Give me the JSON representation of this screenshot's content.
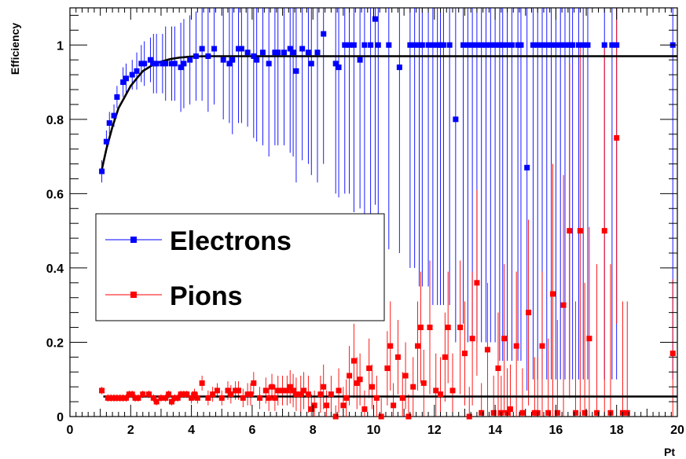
{
  "chart_data": {
    "type": "scatter",
    "xlabel": "Pt",
    "ylabel": "Efficiency",
    "xlim": [
      0,
      20
    ],
    "ylim": [
      0,
      1.1
    ],
    "x_ticks": [
      "0",
      "2",
      "4",
      "6",
      "8",
      "10",
      "12",
      "14",
      "16",
      "18",
      "20"
    ],
    "y_ticks": [
      "0",
      "0.2",
      "0.4",
      "0.6",
      "0.8",
      "1"
    ],
    "grid": false,
    "legend": "center-left",
    "series": [
      {
        "name": "Electrons",
        "color": "#0000ff",
        "marker": "square",
        "points": [
          [
            1.05,
            0.66,
            0.03
          ],
          [
            1.2,
            0.74,
            0.03
          ],
          [
            1.3,
            0.79,
            0.03
          ],
          [
            1.45,
            0.81,
            0.03
          ],
          [
            1.55,
            0.86,
            0.03
          ],
          [
            1.75,
            0.9,
            0.04
          ],
          [
            1.85,
            0.91,
            0.04
          ],
          [
            2.05,
            0.92,
            0.04
          ],
          [
            2.2,
            0.93,
            0.05
          ],
          [
            2.35,
            0.95,
            0.05
          ],
          [
            2.45,
            0.95,
            0.06
          ],
          [
            2.65,
            0.96,
            0.06
          ],
          [
            2.75,
            0.95,
            0.08
          ],
          [
            2.85,
            0.95,
            0.08
          ],
          [
            3.05,
            0.95,
            0.08
          ],
          [
            3.15,
            0.95,
            0.1
          ],
          [
            3.35,
            0.95,
            0.1
          ],
          [
            3.45,
            0.95,
            0.1
          ],
          [
            3.65,
            0.94,
            0.12
          ],
          [
            3.75,
            0.95,
            0.12
          ],
          [
            3.95,
            0.96,
            0.12
          ],
          [
            4.15,
            0.97,
            0.12
          ],
          [
            4.35,
            0.99,
            0.14
          ],
          [
            4.55,
            0.97,
            0.15
          ],
          [
            4.75,
            0.99,
            0.15
          ],
          [
            5.05,
            0.96,
            0.16
          ],
          [
            5.25,
            0.95,
            0.16
          ],
          [
            5.35,
            0.96,
            0.2
          ],
          [
            5.55,
            0.99,
            0.2
          ],
          [
            5.65,
            0.99,
            0.2
          ],
          [
            5.85,
            0.98,
            0.2
          ],
          [
            6.05,
            0.97,
            0.22
          ],
          [
            6.15,
            0.96,
            0.22
          ],
          [
            6.35,
            0.98,
            0.25
          ],
          [
            6.55,
            0.95,
            0.25
          ],
          [
            6.75,
            0.98,
            0.25
          ],
          [
            6.85,
            0.98,
            0.25
          ],
          [
            7.05,
            0.98,
            0.25
          ],
          [
            7.25,
            0.99,
            0.28
          ],
          [
            7.35,
            0.98,
            0.28
          ],
          [
            7.45,
            0.93,
            0.3
          ],
          [
            7.65,
            0.99,
            0.3
          ],
          [
            7.85,
            0.98,
            0.3
          ],
          [
            7.95,
            0.95,
            0.3
          ],
          [
            8.15,
            0.98,
            0.35
          ],
          [
            8.35,
            1.03,
            0.35
          ],
          [
            8.75,
            0.95,
            0.35
          ],
          [
            8.85,
            0.94,
            0.35
          ],
          [
            9.05,
            1.0,
            0.4
          ],
          [
            9.2,
            1.0,
            0.4
          ],
          [
            9.35,
            1.0,
            0.45
          ],
          [
            9.55,
            0.96,
            0.4
          ],
          [
            9.7,
            1.0,
            0.5
          ],
          [
            9.9,
            1.0,
            0.5
          ],
          [
            10.05,
            1.07,
            0.5
          ],
          [
            10.15,
            1.0,
            0.5
          ],
          [
            10.5,
            1.0,
            0.55
          ],
          [
            10.85,
            0.94,
            0.5
          ],
          [
            11.2,
            1.0,
            0.6
          ],
          [
            11.35,
            1.0,
            0.6
          ],
          [
            11.5,
            1.0,
            0.65
          ],
          [
            11.6,
            1.0,
            0.65
          ],
          [
            11.8,
            1.0,
            0.65
          ],
          [
            11.95,
            1.0,
            0.7
          ],
          [
            12.1,
            1.0,
            0.7
          ],
          [
            12.2,
            1.0,
            0.7
          ],
          [
            12.3,
            1.0,
            0.7
          ],
          [
            12.5,
            1.0,
            0.7
          ],
          [
            12.7,
            0.8,
            0.6
          ],
          [
            12.95,
            1.0,
            0.75
          ],
          [
            13.1,
            1.0,
            0.8
          ],
          [
            13.25,
            1.0,
            0.8
          ],
          [
            13.4,
            1.0,
            0.8
          ],
          [
            13.55,
            1.0,
            0.8
          ],
          [
            13.7,
            1.0,
            0.8
          ],
          [
            13.85,
            1.0,
            0.8
          ],
          [
            14.0,
            1.0,
            0.8
          ],
          [
            14.15,
            1.0,
            0.85
          ],
          [
            14.25,
            1.0,
            0.85
          ],
          [
            14.4,
            1.0,
            0.85
          ],
          [
            14.55,
            1.0,
            0.85
          ],
          [
            14.75,
            1.0,
            0.85
          ],
          [
            14.85,
            1.0,
            0.85
          ],
          [
            15.05,
            0.67,
            0.6
          ],
          [
            15.25,
            1.0,
            0.9
          ],
          [
            15.4,
            1.0,
            0.9
          ],
          [
            15.55,
            1.0,
            0.9
          ],
          [
            15.7,
            1.0,
            0.9
          ],
          [
            15.85,
            1.0,
            0.9
          ],
          [
            16.0,
            1.0,
            0.9
          ],
          [
            16.15,
            1.0,
            0.9
          ],
          [
            16.3,
            1.0,
            0.9
          ],
          [
            16.45,
            1.0,
            0.9
          ],
          [
            16.55,
            1.0,
            0.9
          ],
          [
            16.75,
            1.0,
            0.9
          ],
          [
            16.9,
            1.0,
            0.9
          ],
          [
            17.05,
            1.0,
            0.9
          ],
          [
            17.6,
            1.0,
            0.9
          ],
          [
            17.85,
            1.0,
            0.9
          ],
          [
            18.0,
            1.0,
            0.9
          ],
          [
            19.85,
            1.0,
            0.9
          ]
        ]
      },
      {
        "name": "Pions",
        "color": "#ff0000",
        "marker": "square",
        "points": [
          [
            1.05,
            0.07,
            0.01
          ],
          [
            1.25,
            0.05,
            0.01
          ],
          [
            1.35,
            0.05,
            0.01
          ],
          [
            1.45,
            0.05,
            0.01
          ],
          [
            1.55,
            0.05,
            0.01
          ],
          [
            1.65,
            0.05,
            0.01
          ],
          [
            1.75,
            0.05,
            0.01
          ],
          [
            1.85,
            0.05,
            0.01
          ],
          [
            1.95,
            0.06,
            0.01
          ],
          [
            2.05,
            0.06,
            0.01
          ],
          [
            2.15,
            0.05,
            0.01
          ],
          [
            2.25,
            0.05,
            0.01
          ],
          [
            2.4,
            0.06,
            0.01
          ],
          [
            2.6,
            0.06,
            0.01
          ],
          [
            2.75,
            0.05,
            0.01
          ],
          [
            2.85,
            0.04,
            0.01
          ],
          [
            3.0,
            0.05,
            0.01
          ],
          [
            3.15,
            0.05,
            0.01
          ],
          [
            3.25,
            0.06,
            0.01
          ],
          [
            3.35,
            0.04,
            0.01
          ],
          [
            3.45,
            0.05,
            0.01
          ],
          [
            3.55,
            0.05,
            0.01
          ],
          [
            3.65,
            0.06,
            0.01
          ],
          [
            3.75,
            0.06,
            0.01
          ],
          [
            3.85,
            0.06,
            0.01
          ],
          [
            4.0,
            0.05,
            0.015
          ],
          [
            4.1,
            0.06,
            0.015
          ],
          [
            4.2,
            0.05,
            0.015
          ],
          [
            4.35,
            0.09,
            0.02
          ],
          [
            4.55,
            0.05,
            0.02
          ],
          [
            4.7,
            0.06,
            0.02
          ],
          [
            4.85,
            0.07,
            0.02
          ],
          [
            5.0,
            0.05,
            0.02
          ],
          [
            5.2,
            0.07,
            0.025
          ],
          [
            5.3,
            0.06,
            0.025
          ],
          [
            5.45,
            0.07,
            0.025
          ],
          [
            5.55,
            0.07,
            0.025
          ],
          [
            5.7,
            0.05,
            0.025
          ],
          [
            5.85,
            0.06,
            0.03
          ],
          [
            5.95,
            0.06,
            0.03
          ],
          [
            6.05,
            0.09,
            0.03
          ],
          [
            6.25,
            0.05,
            0.03
          ],
          [
            6.45,
            0.07,
            0.035
          ],
          [
            6.55,
            0.05,
            0.035
          ],
          [
            6.65,
            0.08,
            0.035
          ],
          [
            6.75,
            0.05,
            0.035
          ],
          [
            6.85,
            0.07,
            0.04
          ],
          [
            7.0,
            0.07,
            0.04
          ],
          [
            7.15,
            0.07,
            0.04
          ],
          [
            7.25,
            0.08,
            0.045
          ],
          [
            7.35,
            0.07,
            0.045
          ],
          [
            7.45,
            0.06,
            0.045
          ],
          [
            7.6,
            0.06,
            0.05
          ],
          [
            7.7,
            0.07,
            0.05
          ],
          [
            7.85,
            0.06,
            0.05
          ],
          [
            7.95,
            0.02,
            0.04
          ],
          [
            8.05,
            0.03,
            0.04
          ],
          [
            8.25,
            0.06,
            0.05
          ],
          [
            8.35,
            0.08,
            0.06
          ],
          [
            8.45,
            0.03,
            0.04
          ],
          [
            8.6,
            0.06,
            0.05
          ],
          [
            8.75,
            0.0,
            0.03
          ],
          [
            8.85,
            0.07,
            0.06
          ],
          [
            9.0,
            0.03,
            0.05
          ],
          [
            9.1,
            0.05,
            0.05
          ],
          [
            9.2,
            0.11,
            0.08
          ],
          [
            9.35,
            0.15,
            0.1
          ],
          [
            9.45,
            0.09,
            0.07
          ],
          [
            9.55,
            0.1,
            0.07
          ],
          [
            9.7,
            0.02,
            0.05
          ],
          [
            9.85,
            0.13,
            0.08
          ],
          [
            9.95,
            0.08,
            0.06
          ],
          [
            10.1,
            0.05,
            0.06
          ],
          [
            10.25,
            0.0,
            0.05
          ],
          [
            10.45,
            0.13,
            0.1
          ],
          [
            10.55,
            0.19,
            0.12
          ],
          [
            10.65,
            0.03,
            0.06
          ],
          [
            10.8,
            0.16,
            0.1
          ],
          [
            10.95,
            0.05,
            0.07
          ],
          [
            11.05,
            0.11,
            0.09
          ],
          [
            11.15,
            0.0,
            0.06
          ],
          [
            11.3,
            0.08,
            0.08
          ],
          [
            11.45,
            0.19,
            0.12
          ],
          [
            11.55,
            0.24,
            0.15
          ],
          [
            11.65,
            0.09,
            0.09
          ],
          [
            11.85,
            0.24,
            0.18
          ],
          [
            12.05,
            0.07,
            0.1
          ],
          [
            12.2,
            0.06,
            0.1
          ],
          [
            12.35,
            0.16,
            0.12
          ],
          [
            12.45,
            0.24,
            0.15
          ],
          [
            12.6,
            0.07,
            0.1
          ],
          [
            12.85,
            0.24,
            0.18
          ],
          [
            13.0,
            0.17,
            0.14
          ],
          [
            13.15,
            0.0,
            0.08
          ],
          [
            13.25,
            0.21,
            0.18
          ],
          [
            13.4,
            0.36,
            0.25
          ],
          [
            13.55,
            0.01,
            0.08
          ],
          [
            13.75,
            0.18,
            0.18
          ],
          [
            13.95,
            0.01,
            0.1
          ],
          [
            14.1,
            0.13,
            0.15
          ],
          [
            14.2,
            0.01,
            0.1
          ],
          [
            14.3,
            0.21,
            0.2
          ],
          [
            14.4,
            0.01,
            0.12
          ],
          [
            14.5,
            0.02,
            0.12
          ],
          [
            14.7,
            0.19,
            0.2
          ],
          [
            14.9,
            0.01,
            0.12
          ],
          [
            15.1,
            0.28,
            0.25
          ],
          [
            15.3,
            0.01,
            0.15
          ],
          [
            15.4,
            0.01,
            0.15
          ],
          [
            15.55,
            0.19,
            0.2
          ],
          [
            15.75,
            0.01,
            0.2
          ],
          [
            15.9,
            0.33,
            0.35
          ],
          [
            16.05,
            0.01,
            0.25
          ],
          [
            16.25,
            0.3,
            0.35
          ],
          [
            16.45,
            0.5,
            0.45
          ],
          [
            16.65,
            0.01,
            0.3
          ],
          [
            16.8,
            0.5,
            0.5
          ],
          [
            16.95,
            0.01,
            0.35
          ],
          [
            17.1,
            0.21,
            0.3
          ],
          [
            17.35,
            0.01,
            0.4
          ],
          [
            17.6,
            0.5,
            0.5
          ],
          [
            17.8,
            0.01,
            0.4
          ],
          [
            18.0,
            0.75,
            0.5
          ],
          [
            18.2,
            0.01,
            0.3
          ],
          [
            18.35,
            0.01,
            0.3
          ],
          [
            19.85,
            0.17,
            0.2
          ]
        ]
      }
    ],
    "fits": [
      {
        "type": "line",
        "x": [
          1.05,
          1.2,
          1.4,
          1.6,
          1.8,
          2.0,
          2.2,
          2.4,
          2.6,
          2.8,
          3.0,
          3.3,
          3.6,
          4.0,
          4.5,
          5.0,
          6.0,
          8.0,
          10.0,
          14.0,
          20.0
        ],
        "y": [
          0.665,
          0.72,
          0.78,
          0.83,
          0.86,
          0.89,
          0.91,
          0.93,
          0.94,
          0.95,
          0.955,
          0.962,
          0.966,
          0.969,
          0.97,
          0.97,
          0.97,
          0.97,
          0.97,
          0.97,
          0.97
        ],
        "color": "#000000"
      },
      {
        "type": "line",
        "x": [
          1.1,
          20.0
        ],
        "y": [
          0.054,
          0.054
        ],
        "color": "#000000"
      }
    ]
  }
}
